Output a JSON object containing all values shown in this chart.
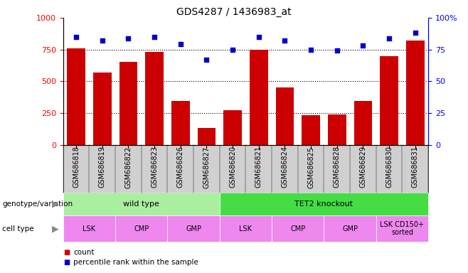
{
  "title": "GDS4287 / 1436983_at",
  "samples": [
    "GSM686818",
    "GSM686819",
    "GSM686822",
    "GSM686823",
    "GSM686826",
    "GSM686827",
    "GSM686820",
    "GSM686821",
    "GSM686824",
    "GSM686825",
    "GSM686828",
    "GSM686829",
    "GSM686830",
    "GSM686831"
  ],
  "counts": [
    760,
    570,
    650,
    730,
    345,
    130,
    270,
    750,
    450,
    230,
    240,
    345,
    700,
    820
  ],
  "percentiles": [
    85,
    82,
    84,
    85,
    79,
    67,
    75,
    85,
    82,
    75,
    74,
    78,
    84,
    88
  ],
  "ylim_left": [
    0,
    1000
  ],
  "ylim_right": [
    0,
    100
  ],
  "yticks_left": [
    0,
    250,
    500,
    750,
    1000
  ],
  "yticks_right": [
    0,
    25,
    50,
    75,
    100
  ],
  "bar_color": "#cc0000",
  "scatter_color": "#0000cc",
  "hline_vals": [
    250,
    500,
    750
  ],
  "genotype_labels": [
    {
      "text": "wild type",
      "start": 0,
      "end": 6,
      "color": "#aaeea0"
    },
    {
      "text": "TET2 knockout",
      "start": 6,
      "end": 14,
      "color": "#44dd44"
    }
  ],
  "cell_type_labels": [
    {
      "text": "LSK",
      "start": 0,
      "end": 2,
      "color": "#ee88ee"
    },
    {
      "text": "CMP",
      "start": 2,
      "end": 4,
      "color": "#ee88ee"
    },
    {
      "text": "GMP",
      "start": 4,
      "end": 6,
      "color": "#ee88ee"
    },
    {
      "text": "LSK",
      "start": 6,
      "end": 8,
      "color": "#ee88ee"
    },
    {
      "text": "CMP",
      "start": 8,
      "end": 10,
      "color": "#ee88ee"
    },
    {
      "text": "GMP",
      "start": 10,
      "end": 12,
      "color": "#ee88ee"
    },
    {
      "text": "LSK CD150+\nsorted",
      "start": 12,
      "end": 14,
      "color": "#ee88ee"
    }
  ],
  "legend_items": [
    {
      "label": "count",
      "color": "#cc0000"
    },
    {
      "label": "percentile rank within the sample",
      "color": "#0000cc"
    }
  ],
  "genotype_label": "genotype/variation",
  "cell_type_label": "cell type",
  "tick_bg_color": "#d0d0d0",
  "title_fontsize": 10,
  "tick_fontsize": 7,
  "annot_fontsize": 8,
  "legend_fontsize": 7.5
}
